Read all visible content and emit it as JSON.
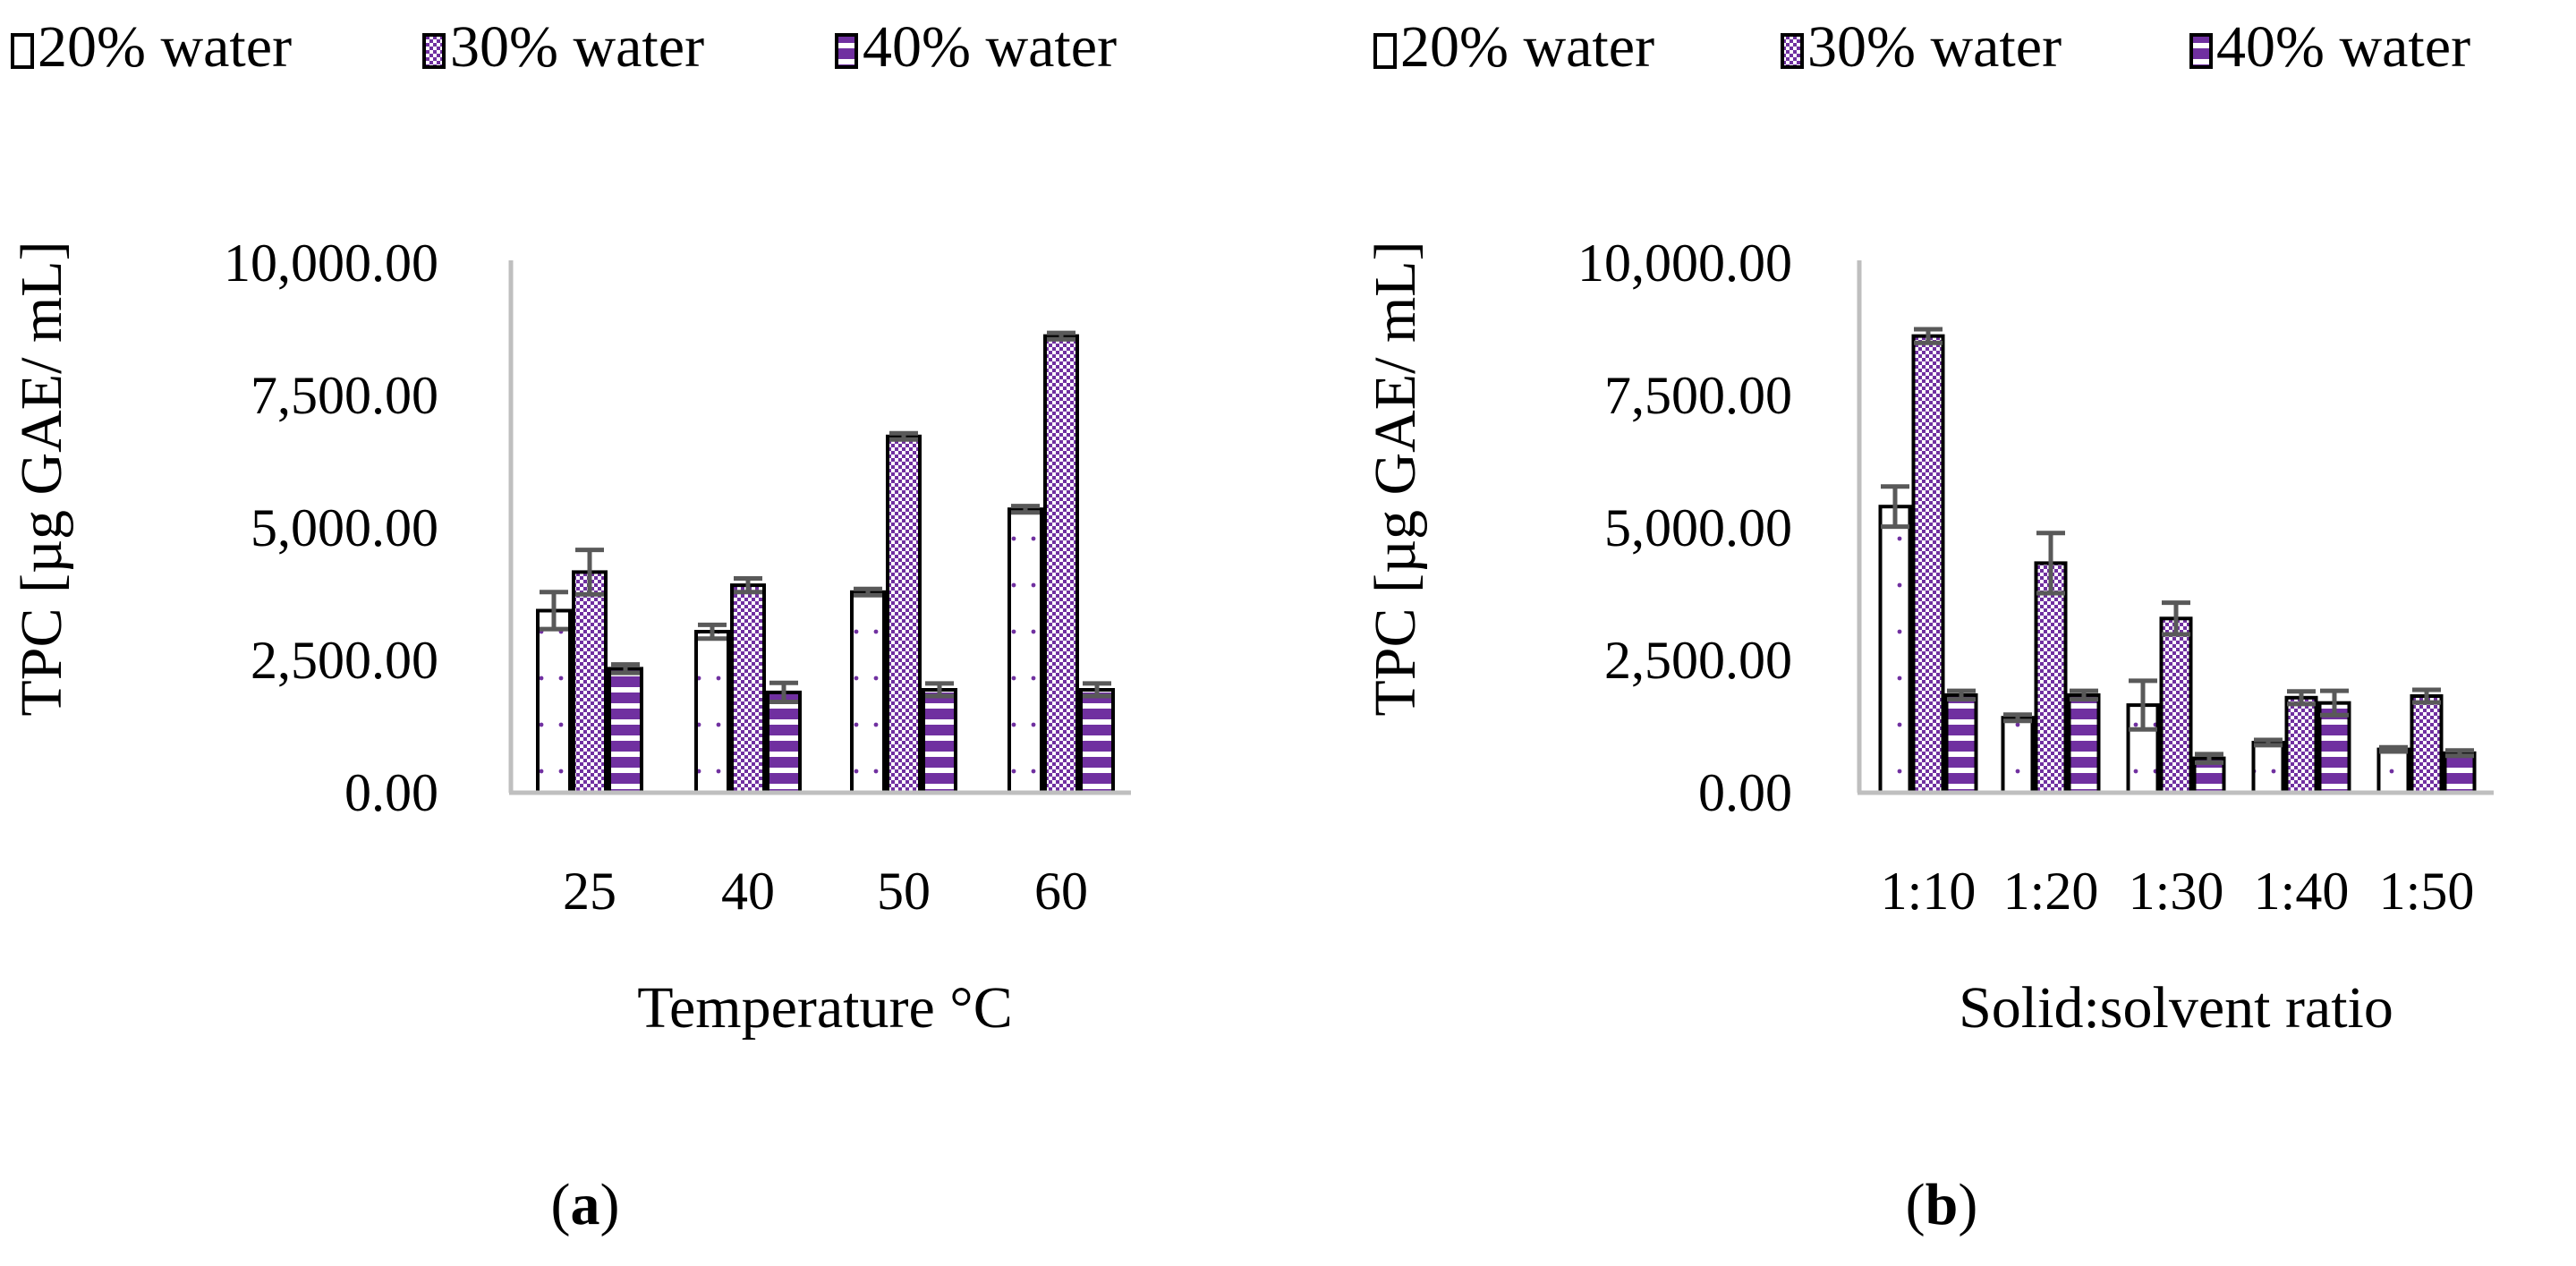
{
  "colors": {
    "bar_outline": "#000000",
    "purple": "#7030a0",
    "axis": "#bfbfbf",
    "error_bar": "#595959"
  },
  "series_styles": [
    {
      "name": "20% water",
      "pattern": "dots",
      "icon": "dotted-square-icon"
    },
    {
      "name": "30% water",
      "pattern": "checker",
      "icon": "checkered-square-icon"
    },
    {
      "name": "40% water",
      "pattern": "stripes",
      "icon": "striped-square-icon"
    }
  ],
  "chart_data": [
    {
      "type": "bar",
      "panel_label": "a",
      "title": "",
      "legend": [
        "20% water",
        "30% water",
        "40% water"
      ],
      "legend_position": "top",
      "xlabel": "Temperature °C",
      "ylabel": "TPC [µg GAE/ mL]",
      "ylim": [
        0,
        10000
      ],
      "yticks": [
        "0.00",
        "2,500.00",
        "5,000.00",
        "7,500.00",
        "10,000.00"
      ],
      "ytick_values": [
        0,
        2500,
        5000,
        7500,
        10000
      ],
      "gridlines": false,
      "categories": [
        "25",
        "40",
        "50",
        "60"
      ],
      "series": [
        {
          "name": "20% water",
          "values": [
            3450,
            3050,
            3800,
            5370
          ],
          "errors": [
            350,
            130,
            60,
            60
          ]
        },
        {
          "name": "30% water",
          "values": [
            4180,
            3930,
            6750,
            8650
          ],
          "errors": [
            420,
            130,
            60,
            60
          ]
        },
        {
          "name": "40% water",
          "values": [
            2350,
            1900,
            1950,
            1950
          ],
          "errors": [
            80,
            180,
            120,
            120
          ]
        }
      ]
    },
    {
      "type": "bar",
      "panel_label": "b",
      "title": "",
      "legend": [
        "20% water",
        "30% water",
        "40% water"
      ],
      "legend_position": "top",
      "xlabel": "Solid:solvent ratio",
      "ylabel": "TPC [µg GAE/ mL]",
      "ylim": [
        0,
        10000
      ],
      "yticks": [
        "0.00",
        "2,500.00",
        "5,000.00",
        "7,500.00",
        "10,000.00"
      ],
      "ytick_values": [
        0,
        2500,
        5000,
        7500,
        10000
      ],
      "gridlines": false,
      "categories": [
        "1:10",
        "1:20",
        "1:30",
        "1:40",
        "1:50"
      ],
      "series": [
        {
          "name": "20% water",
          "values": [
            5420,
            1420,
            1660,
            950,
            820
          ],
          "errors": [
            380,
            60,
            460,
            50,
            40
          ]
        },
        {
          "name": "30% water",
          "values": [
            8650,
            4350,
            3300,
            1800,
            1830
          ],
          "errors": [
            130,
            570,
            300,
            120,
            120
          ]
        },
        {
          "name": "40% water",
          "values": [
            1850,
            1850,
            650,
            1700,
            750
          ],
          "errors": [
            80,
            80,
            80,
            230,
            50
          ]
        }
      ]
    }
  ]
}
